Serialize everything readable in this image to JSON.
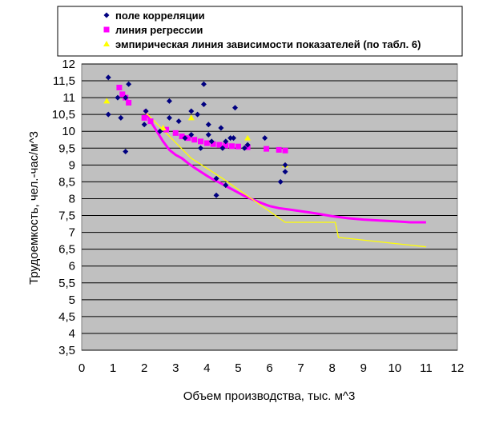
{
  "chart_data": {
    "type": "scatter",
    "xlabel": "Объем производства, тыс. м^3",
    "ylabel": "Трудоемкость, чел.-час/м^3",
    "xlim": [
      0,
      12
    ],
    "ylim": [
      3.5,
      12
    ],
    "x_ticks": [
      "0",
      "1",
      "2",
      "3",
      "4",
      "5",
      "6",
      "7",
      "8",
      "9",
      "10",
      "11",
      "12"
    ],
    "y_ticks": [
      "3,5",
      "4",
      "4,5",
      "5",
      "5,5",
      "6",
      "6,5",
      "7",
      "7,5",
      "8",
      "8,5",
      "9",
      "9,5",
      "10",
      "10,5",
      "11",
      "11,5",
      "12"
    ],
    "grid": true,
    "plot_background": "#c0c0c0",
    "legend_position": "top",
    "series": [
      {
        "name": "поле корреляции",
        "marker": "diamond",
        "color": "#000080",
        "points": [
          [
            0.85,
            11.6
          ],
          [
            0.85,
            10.5
          ],
          [
            1.15,
            11.0
          ],
          [
            1.25,
            10.4
          ],
          [
            1.4,
            9.4
          ],
          [
            1.5,
            11.4
          ],
          [
            1.4,
            11.0
          ],
          [
            2.05,
            10.6
          ],
          [
            2.0,
            10.2
          ],
          [
            2.5,
            10.0
          ],
          [
            2.8,
            10.9
          ],
          [
            2.8,
            10.4
          ],
          [
            3.1,
            10.3
          ],
          [
            3.3,
            9.8
          ],
          [
            3.5,
            10.6
          ],
          [
            3.5,
            9.9
          ],
          [
            3.7,
            10.5
          ],
          [
            3.8,
            9.5
          ],
          [
            3.9,
            11.4
          ],
          [
            3.9,
            10.8
          ],
          [
            4.05,
            10.2
          ],
          [
            4.05,
            9.9
          ],
          [
            4.15,
            9.7
          ],
          [
            4.3,
            8.6
          ],
          [
            4.3,
            8.1
          ],
          [
            4.45,
            10.1
          ],
          [
            4.5,
            9.5
          ],
          [
            4.6,
            9.7
          ],
          [
            4.6,
            8.4
          ],
          [
            4.75,
            9.8
          ],
          [
            4.85,
            9.8
          ],
          [
            4.9,
            10.7
          ],
          [
            5.2,
            9.5
          ],
          [
            5.3,
            9.6
          ],
          [
            5.85,
            9.8
          ],
          [
            6.35,
            8.5
          ],
          [
            6.5,
            8.8
          ],
          [
            6.5,
            9.0
          ]
        ]
      },
      {
        "name": "линия регрессии",
        "marker": "square",
        "color": "#ff00ff",
        "points": [
          [
            1.2,
            11.3
          ],
          [
            1.3,
            11.1
          ],
          [
            1.4,
            11.0
          ],
          [
            1.5,
            10.85
          ],
          [
            2.0,
            10.4
          ],
          [
            2.2,
            10.3
          ],
          [
            2.7,
            10.05
          ],
          [
            3.0,
            9.95
          ],
          [
            3.2,
            9.85
          ],
          [
            3.4,
            9.8
          ],
          [
            3.6,
            9.75
          ],
          [
            3.8,
            9.7
          ],
          [
            4.0,
            9.65
          ],
          [
            4.2,
            9.62
          ],
          [
            4.4,
            9.6
          ],
          [
            4.6,
            9.58
          ],
          [
            4.8,
            9.56
          ],
          [
            5.0,
            9.55
          ],
          [
            5.3,
            9.53
          ],
          [
            5.9,
            9.48
          ],
          [
            6.3,
            9.45
          ],
          [
            6.5,
            9.43
          ]
        ]
      },
      {
        "name": "эмпирическая линия зависимости показателей (по табл. 6)",
        "marker": "triangle",
        "color": "#ffff00",
        "points": [
          [
            0.8,
            10.9
          ],
          [
            2.6,
            10.1
          ],
          [
            3.5,
            10.4
          ],
          [
            5.3,
            9.8
          ],
          [
            6.5,
            9.0
          ]
        ]
      }
    ],
    "lines": [
      {
        "series": "линия регрессии",
        "color": "#ff00ff",
        "points": [
          [
            2.0,
            10.65
          ],
          [
            2.2,
            10.3
          ],
          [
            2.4,
            10.0
          ],
          [
            2.6,
            9.7
          ],
          [
            2.8,
            9.45
          ],
          [
            3.0,
            9.3
          ],
          [
            3.2,
            9.2
          ],
          [
            3.4,
            9.05
          ],
          [
            3.6,
            8.92
          ],
          [
            3.8,
            8.8
          ],
          [
            4.0,
            8.68
          ],
          [
            4.2,
            8.57
          ],
          [
            4.4,
            8.48
          ],
          [
            4.6,
            8.38
          ],
          [
            4.8,
            8.28
          ],
          [
            5.0,
            8.18
          ],
          [
            5.2,
            8.08
          ],
          [
            5.4,
            8.0
          ],
          [
            5.6,
            7.92
          ],
          [
            5.8,
            7.85
          ],
          [
            6.0,
            7.78
          ],
          [
            6.3,
            7.72
          ],
          [
            6.6,
            7.68
          ],
          [
            7.0,
            7.63
          ],
          [
            7.5,
            7.56
          ],
          [
            8.0,
            7.48
          ],
          [
            8.5,
            7.42
          ],
          [
            9.0,
            7.38
          ],
          [
            9.5,
            7.35
          ],
          [
            10.0,
            7.33
          ],
          [
            10.5,
            7.3
          ],
          [
            11.0,
            7.3
          ]
        ]
      },
      {
        "series": "эмпирическая линия зависимости показателей (по табл. 6)",
        "color": "#ffff00",
        "points": [
          [
            2.0,
            10.6
          ],
          [
            3.5,
            9.2
          ],
          [
            4.5,
            8.6
          ],
          [
            5.5,
            7.95
          ],
          [
            6.5,
            7.3
          ],
          [
            8.1,
            7.3
          ],
          [
            8.2,
            6.85
          ],
          [
            11.0,
            6.57
          ]
        ]
      }
    ]
  }
}
